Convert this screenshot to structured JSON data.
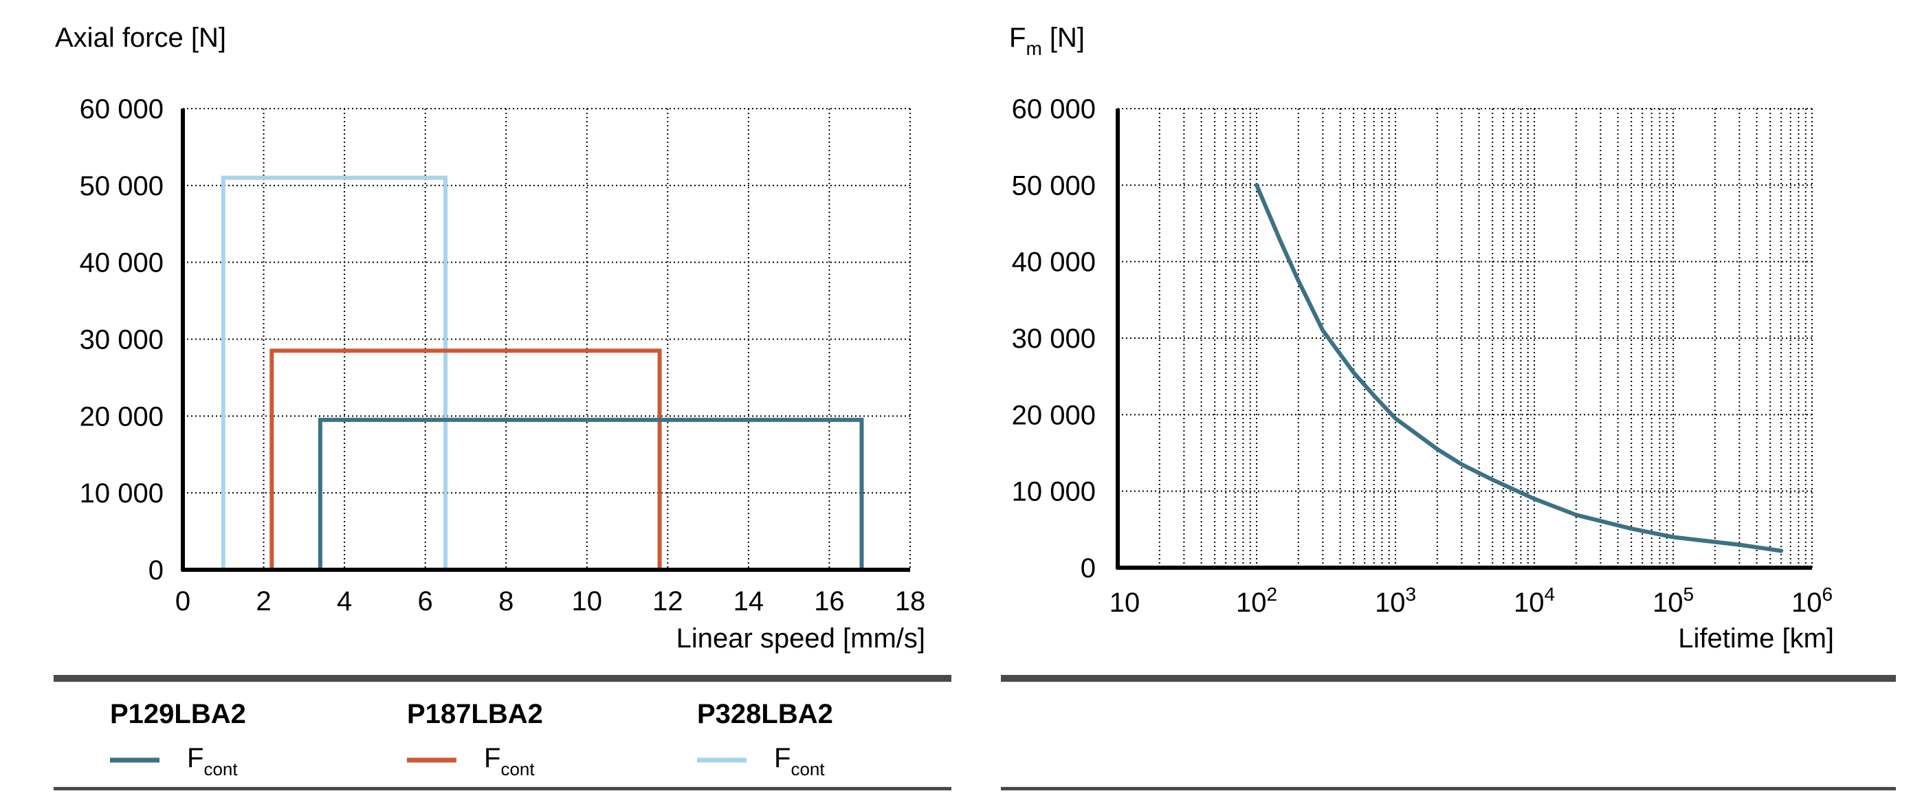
{
  "chart_data": [
    {
      "type": "line",
      "title": "Axial force [N]",
      "xlabel": "Linear speed [mm/s]",
      "ylabel": "Axial force [N]",
      "xlim": [
        0,
        18
      ],
      "ylim": [
        0,
        60000
      ],
      "x_ticks": [
        0,
        2,
        4,
        6,
        8,
        10,
        12,
        14,
        16,
        18
      ],
      "x_tick_labels": [
        "0",
        "2",
        "4",
        "6",
        "8",
        "10",
        "12",
        "14",
        "16",
        "18"
      ],
      "y_ticks": [
        0,
        10000,
        20000,
        30000,
        40000,
        50000,
        60000
      ],
      "y_tick_labels": [
        "0",
        "10 000",
        "20 000",
        "30 000",
        "40 000",
        "50 000",
        "60 000"
      ],
      "grid": true,
      "series": [
        {
          "name": "P129LBA2",
          "sub": "F",
          "sub_index": "cont",
          "color": "#3d7185",
          "x": [
            0,
            3.4,
            3.4,
            16.8,
            16.8
          ],
          "y": [
            0,
            0,
            19500,
            19500,
            0
          ]
        },
        {
          "name": "P187LBA2",
          "sub": "F",
          "sub_index": "cont",
          "color": "#cc5a34",
          "x": [
            1,
            2.2,
            2.2,
            11.8,
            11.8
          ],
          "y": [
            0,
            0,
            28500,
            28500,
            0
          ]
        },
        {
          "name": "P328LBA2",
          "sub": "F",
          "sub_index": "cont",
          "color": "#a8d4ec",
          "x": [
            0,
            1,
            1,
            6.5,
            6.5
          ],
          "y": [
            0,
            0,
            51000,
            51000,
            0
          ]
        }
      ]
    },
    {
      "type": "line",
      "title_main": "F",
      "title_sub": "m",
      "title_rest": " [N]",
      "xlabel": "Lifetime [km]",
      "ylabel": "Fm [N]",
      "xscale": "log",
      "xlim": [
        10,
        1000000
      ],
      "ylim": [
        0,
        60000
      ],
      "x_ticks": [
        {
          "base": "10",
          "exp": ""
        },
        {
          "base": "10",
          "exp": "2"
        },
        {
          "base": "10",
          "exp": "3"
        },
        {
          "base": "10",
          "exp": "4"
        },
        {
          "base": "10",
          "exp": "5"
        },
        {
          "base": "10",
          "exp": "6"
        }
      ],
      "y_ticks": [
        0,
        10000,
        20000,
        30000,
        40000,
        50000,
        60000
      ],
      "y_tick_labels": [
        "0",
        "10 000",
        "20 000",
        "30 000",
        "40 000",
        "50 000",
        "60 000"
      ],
      "grid": true,
      "series": [
        {
          "name": "Fm",
          "color": "#3d7185",
          "x": [
            100,
            150,
            200,
            300,
            500,
            700,
            1000,
            2000,
            3000,
            5000,
            10000,
            20000,
            50000,
            100000,
            300000,
            600000
          ],
          "y": [
            50000,
            42500,
            37500,
            31000,
            25500,
            22500,
            19500,
            15500,
            13500,
            11500,
            9000,
            6900,
            5100,
            4000,
            3000,
            2200
          ]
        }
      ]
    }
  ],
  "style": {
    "axis_color": "#000000",
    "grid_color": "#000000",
    "divider_color": "#4a4a4a"
  }
}
